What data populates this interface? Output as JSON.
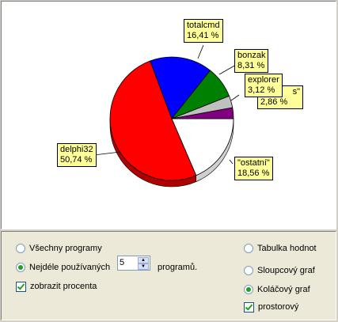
{
  "chart_data": {
    "type": "pie",
    "three_d": true,
    "categories": [
      "delphi32",
      "totalcmd",
      "bonzak",
      "\"ostatní\"",
      "explorer",
      "\"ostatní\""
    ],
    "slices": [
      {
        "name": "delphi32",
        "value": 50.74,
        "label": "50,74 %",
        "color": "#ff0000",
        "dark": "#b00000"
      },
      {
        "name": "totalcmd",
        "value": 16.41,
        "label": "16,41 %",
        "color": "#0000ff",
        "dark": "#0000a8"
      },
      {
        "name": "bonzak",
        "value": 8.31,
        "label": "8,31 %",
        "color": "#008000",
        "dark": "#005000"
      },
      {
        "name": "explorer",
        "value": 3.12,
        "label": "3,12 %",
        "color": "#c0c0c0",
        "dark": "#808080"
      },
      {
        "name": "\"ostatní\"",
        "value": 2.86,
        "label": "2,86 %",
        "color": "#800080",
        "dark": "#500050"
      },
      {
        "name": "\"ostatní\"",
        "value": 18.56,
        "label": "18,56 %",
        "color": "#ffffff",
        "dark": "#d0d0d0"
      }
    ],
    "hidden_label_fragment": "s\""
  },
  "controls": {
    "all_programs_label": "Všechny programy",
    "most_used_label": "Nejdéle používaných",
    "count_value": "5",
    "programs_suffix": "programů.",
    "show_percent_label": "zobrazit procenta",
    "table_label": "Tabulka hodnot",
    "bar_label": "Sloupcový graf",
    "pie_label": "Koláčový graf",
    "three_d_label": "prostorový"
  }
}
